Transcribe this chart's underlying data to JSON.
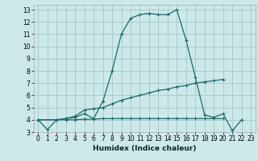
{
  "xlabel": "Humidex (Indice chaleur)",
  "background_color": "#cce8e8",
  "grid_color": "#aacccc",
  "line_color": "#1a6b6b",
  "xlim": [
    -0.5,
    23.5
  ],
  "ylim": [
    3,
    13.4
  ],
  "xticks": [
    0,
    1,
    2,
    3,
    4,
    5,
    6,
    7,
    8,
    9,
    10,
    11,
    12,
    13,
    14,
    15,
    16,
    17,
    18,
    19,
    20,
    21,
    22,
    23
  ],
  "yticks": [
    3,
    4,
    5,
    6,
    7,
    8,
    9,
    10,
    11,
    12,
    13
  ],
  "series": [
    {
      "x": [
        0,
        1,
        2,
        3,
        4,
        5,
        6,
        7,
        8,
        9,
        10,
        11,
        12,
        13,
        14,
        15,
        16,
        17,
        18,
        19,
        20,
        21,
        22,
        23
      ],
      "y": [
        4,
        3.2,
        4,
        4.1,
        4.2,
        4.5,
        4.1,
        5.5,
        8.0,
        11.0,
        12.3,
        12.6,
        12.7,
        12.6,
        12.6,
        13.0,
        10.5,
        7.5,
        4.4,
        4.2,
        4.5,
        3.1,
        4.0,
        null
      ]
    },
    {
      "x": [
        0,
        2,
        3,
        4,
        5,
        6,
        7,
        8,
        9,
        10,
        11,
        12,
        13,
        14,
        15,
        16,
        17,
        18,
        19,
        20
      ],
      "y": [
        4,
        4,
        4.1,
        4.3,
        4.8,
        4.9,
        5.0,
        5.3,
        5.6,
        5.8,
        6.0,
        6.2,
        6.4,
        6.5,
        6.7,
        6.8,
        7.0,
        7.1,
        7.2,
        7.3
      ]
    },
    {
      "x": [
        0,
        2,
        3,
        4,
        5,
        6,
        7,
        8,
        9,
        10,
        11,
        12,
        13,
        14,
        15,
        16,
        17,
        18,
        19,
        20
      ],
      "y": [
        4,
        4,
        4.0,
        4.0,
        4.05,
        4.05,
        4.1,
        4.1,
        4.1,
        4.1,
        4.1,
        4.1,
        4.1,
        4.1,
        4.1,
        4.1,
        4.1,
        4.1,
        4.1,
        4.1
      ]
    }
  ]
}
